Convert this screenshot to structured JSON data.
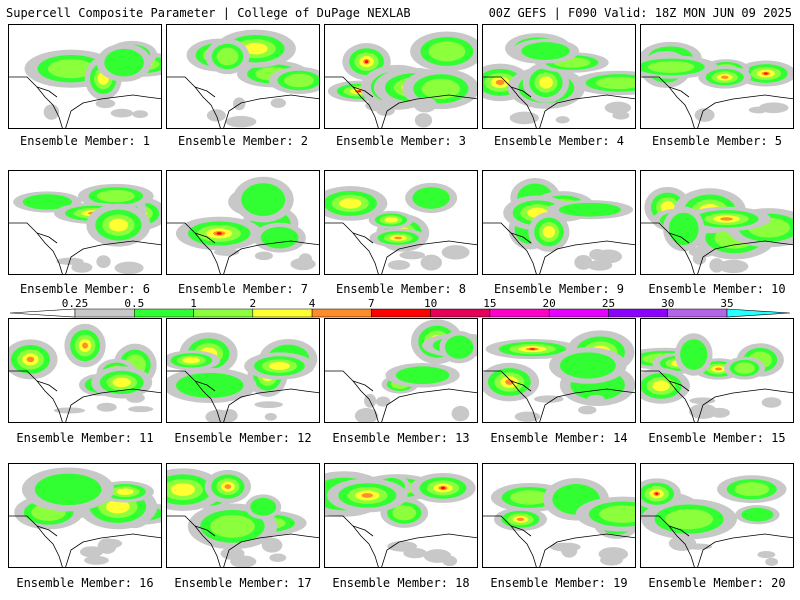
{
  "header": {
    "left": "Supercell Composite Parameter | College of DuPage NEXLAB",
    "right": "00Z GEFS | F090 Valid: 18Z MON JUN 09 2025"
  },
  "colorbar": {
    "ticks": [
      "0.25",
      "0.5",
      "1",
      "2",
      "4",
      "7",
      "10",
      "15",
      "20",
      "25",
      "30",
      "35"
    ],
    "colors": [
      "#c8c8c8",
      "#32ff32",
      "#8cff3c",
      "#ffff32",
      "#ff8c28",
      "#ff0000",
      "#e6005a",
      "#ff00c8",
      "#e600ff",
      "#8c00ff",
      "#b464e6",
      "#28ffff"
    ]
  },
  "members": [
    {
      "id": 1,
      "label": "Ensemble Member: 1"
    },
    {
      "id": 2,
      "label": "Ensemble Member: 2"
    },
    {
      "id": 3,
      "label": "Ensemble Member: 3"
    },
    {
      "id": 4,
      "label": "Ensemble Member: 4"
    },
    {
      "id": 5,
      "label": "Ensemble Member: 5"
    },
    {
      "id": 6,
      "label": "Ensemble Member: 6"
    },
    {
      "id": 7,
      "label": "Ensemble Member: 7"
    },
    {
      "id": 8,
      "label": "Ensemble Member: 8"
    },
    {
      "id": 9,
      "label": "Ensemble Member: 9"
    },
    {
      "id": 10,
      "label": "Ensemble Member: 10"
    },
    {
      "id": 11,
      "label": "Ensemble Member: 11"
    },
    {
      "id": 12,
      "label": "Ensemble Member: 12"
    },
    {
      "id": 13,
      "label": "Ensemble Member: 13"
    },
    {
      "id": 14,
      "label": "Ensemble Member: 14"
    },
    {
      "id": 15,
      "label": "Ensemble Member: 15"
    },
    {
      "id": 16,
      "label": "Ensemble Member: 16"
    },
    {
      "id": 17,
      "label": "Ensemble Member: 17"
    },
    {
      "id": 18,
      "label": "Ensemble Member: 18"
    },
    {
      "id": 19,
      "label": "Ensemble Member: 19"
    },
    {
      "id": 20,
      "label": "Ensemble Member: 20"
    }
  ]
}
